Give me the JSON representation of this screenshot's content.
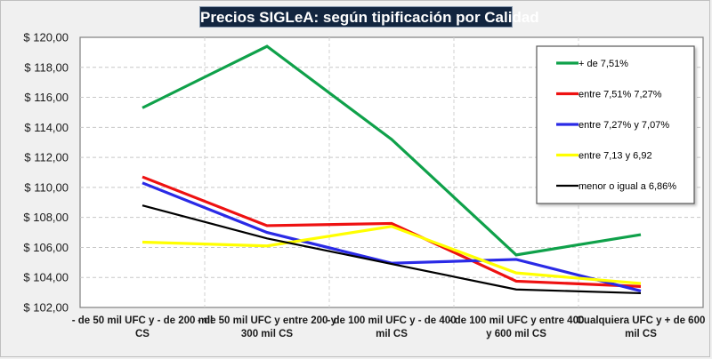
{
  "chart_data": {
    "type": "line",
    "title": "Precios SIGLeA: según tipificación por Calidad",
    "xlabel": "",
    "ylabel": "",
    "ylim": [
      102,
      120
    ],
    "y_ticks": [
      "$ 120,00",
      "$ 118,00",
      "$ 116,00",
      "$ 114,00",
      "$ 112,00",
      "$ 110,00",
      "$ 108,00",
      "$ 106,00",
      "$ 104,00",
      "$ 102,00"
    ],
    "y_tick_values": [
      120,
      118,
      116,
      114,
      112,
      110,
      108,
      106,
      104,
      102
    ],
    "grid": true,
    "legend_position": "top-right",
    "categories": [
      [
        "- de 50 mil UFC y - de 200 mil",
        "CS"
      ],
      [
        "- de 50 mil UFC y entre  200 y",
        "300 mil CS"
      ],
      [
        "- de 100 mil UFC y - de 400",
        "mil CS"
      ],
      [
        "- de 100 mil UFC y entre  400",
        "y 600 mil CS"
      ],
      [
        "Cualquiera UFC y + de 600",
        "mil CS"
      ]
    ],
    "series": [
      {
        "name": "+ de 7,51%",
        "color": "#0fa14a",
        "values": [
          115.3,
          119.4,
          113.2,
          105.5,
          106.85
        ]
      },
      {
        "name": "entre 7,51% 7,27%",
        "color": "#ee1111",
        "values": [
          110.7,
          107.45,
          107.6,
          103.75,
          103.4
        ]
      },
      {
        "name": "entre 7,27% y 7,07%",
        "color": "#2a2ae6",
        "values": [
          110.3,
          107.0,
          104.95,
          105.2,
          103.1
        ]
      },
      {
        "name": " entre 7,13 y 6,92",
        "color": "#ffff00",
        "values": [
          106.35,
          106.1,
          107.4,
          104.3,
          103.6
        ]
      },
      {
        "name": "menor o igual a 6,86%",
        "color": "#000000",
        "values": [
          108.8,
          106.6,
          104.9,
          103.2,
          102.95
        ]
      }
    ]
  }
}
